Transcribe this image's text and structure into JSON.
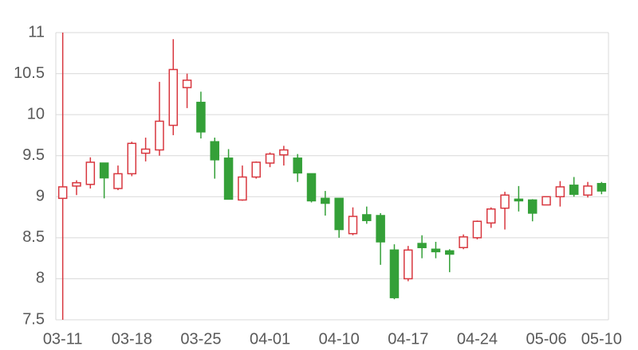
{
  "chart_data": {
    "type": "candlestick",
    "categories": [
      "03-11",
      null,
      null,
      null,
      null,
      "03-18",
      null,
      null,
      null,
      null,
      "03-25",
      null,
      null,
      null,
      null,
      "04-01",
      null,
      null,
      null,
      null,
      "04-10",
      null,
      null,
      null,
      null,
      "04-17",
      null,
      null,
      null,
      null,
      "04-24",
      null,
      null,
      null,
      null,
      "05-06",
      null,
      null,
      null,
      "05-10"
    ],
    "open": [
      8.98,
      9.13,
      9.15,
      9.41,
      9.1,
      9.28,
      9.53,
      9.57,
      9.87,
      10.33,
      10.15,
      9.67,
      9.47,
      8.96,
      9.24,
      9.41,
      9.51,
      9.47,
      9.28,
      8.98,
      8.98,
      8.55,
      8.78,
      8.77,
      8.35,
      8.0,
      8.43,
      8.36,
      8.34,
      8.38,
      8.5,
      8.68,
      8.86,
      8.97,
      8.96,
      8.9,
      9.0,
      9.14,
      9.02,
      9.16
    ],
    "high": [
      11.0,
      9.2,
      9.48,
      9.41,
      9.38,
      9.67,
      9.72,
      10.4,
      10.92,
      10.5,
      10.28,
      9.72,
      9.58,
      9.38,
      9.43,
      9.54,
      9.62,
      9.52,
      9.28,
      9.07,
      8.98,
      8.87,
      8.88,
      8.8,
      8.42,
      8.4,
      8.53,
      8.45,
      8.36,
      8.54,
      8.71,
      8.87,
      9.06,
      9.13,
      8.97,
      9.0,
      9.19,
      9.24,
      9.18,
      9.18
    ],
    "low": [
      7.5,
      9.02,
      9.1,
      8.98,
      9.08,
      9.25,
      9.43,
      9.5,
      9.75,
      10.08,
      9.71,
      9.22,
      8.97,
      8.95,
      9.22,
      9.36,
      9.38,
      9.18,
      8.93,
      8.77,
      8.5,
      8.53,
      8.67,
      8.17,
      7.75,
      7.97,
      8.25,
      8.25,
      8.08,
      8.36,
      8.48,
      8.62,
      8.6,
      8.82,
      8.7,
      8.9,
      8.88,
      9.0,
      8.99,
      9.03
    ],
    "close": [
      9.12,
      9.17,
      9.42,
      9.23,
      9.28,
      9.65,
      9.58,
      9.92,
      10.55,
      10.42,
      9.79,
      9.45,
      8.97,
      9.24,
      9.42,
      9.52,
      9.57,
      9.29,
      8.95,
      8.92,
      8.6,
      8.76,
      8.71,
      8.45,
      7.77,
      8.35,
      8.38,
      8.33,
      8.3,
      8.51,
      8.7,
      8.85,
      9.02,
      8.95,
      8.8,
      9.0,
      9.12,
      9.03,
      9.13,
      9.07
    ],
    "up_color": "#d8373f",
    "down_color": "#34a038",
    "ylim": [
      7.5,
      11
    ],
    "yticks": [
      7.5,
      8,
      8.5,
      9,
      9.5,
      10,
      10.5,
      11
    ],
    "grid": true
  }
}
